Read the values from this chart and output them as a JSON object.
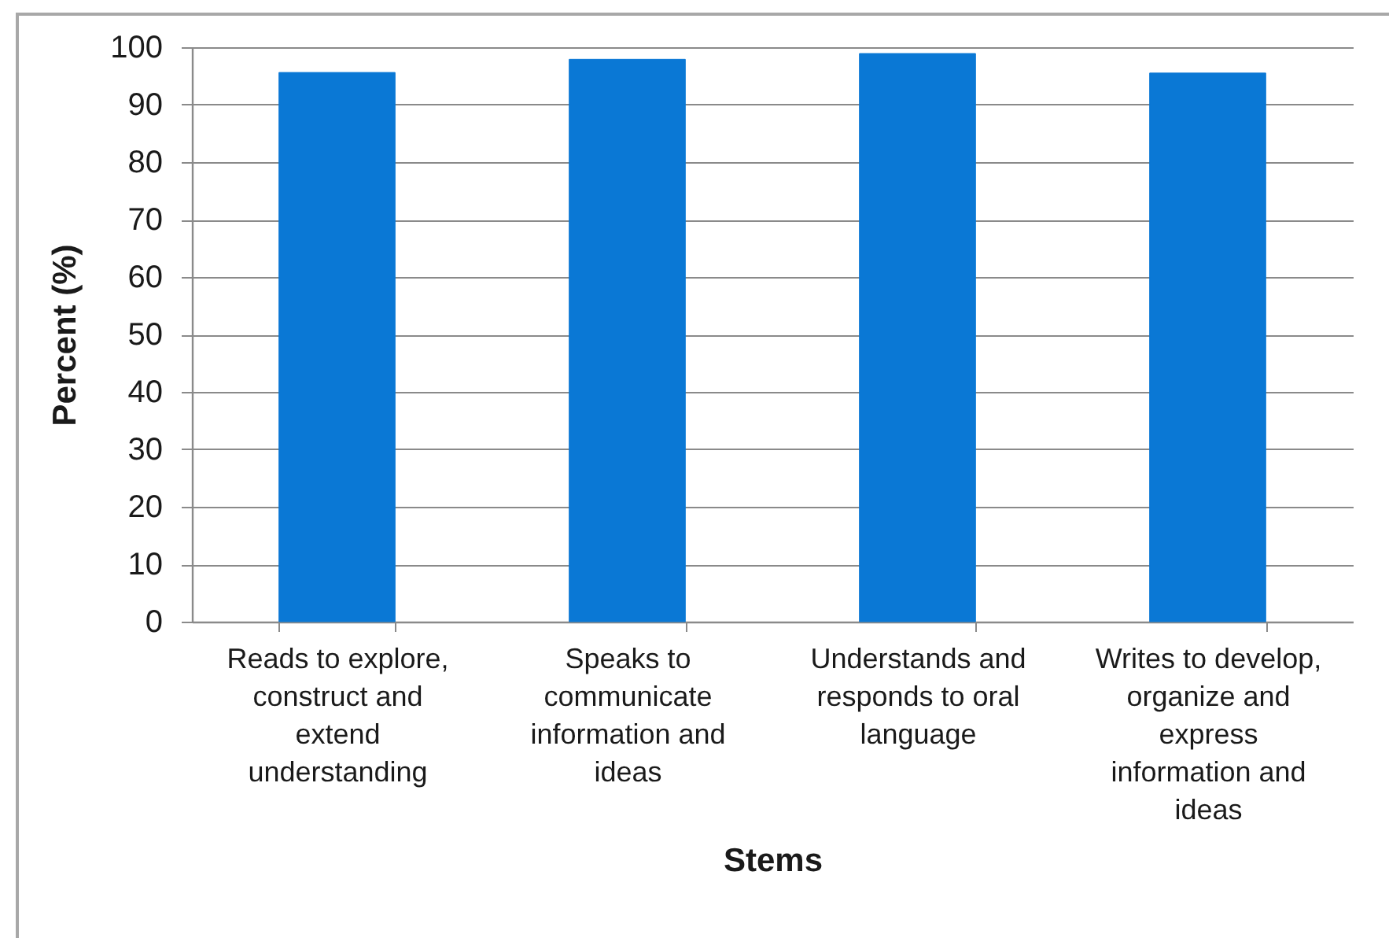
{
  "chart_data": {
    "type": "bar",
    "xlabel": "Stems",
    "ylabel": "Percent (%)",
    "categories": [
      "Reads to explore, construct and extend understanding",
      "Speaks to communicate information and ideas",
      "Understands and responds to oral language",
      "Writes to develop, organize and express information and ideas"
    ],
    "values": [
      95.6,
      97.9,
      98.9,
      95.5
    ],
    "color": "#0a78d5",
    "ylim": [
      0,
      100
    ],
    "yticks": [
      0,
      10,
      20,
      30,
      40,
      50,
      60,
      70,
      80,
      90,
      100
    ],
    "grid": "y"
  }
}
